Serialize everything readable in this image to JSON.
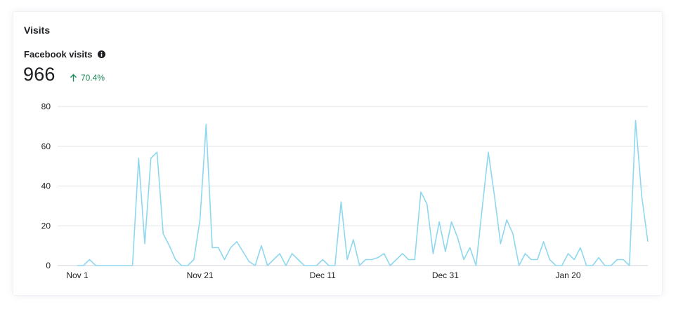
{
  "card": {
    "title": "Visits",
    "metric_label": "Facebook visits",
    "metric_value": "966",
    "delta_text": "70.4%",
    "info_icon": "info-circle-icon",
    "delta_icon": "arrow-up-icon"
  },
  "colors": {
    "line": "#8fd7ee",
    "grid": "#dfe1e6",
    "positive": "#1b8a58"
  },
  "chart_data": {
    "type": "line",
    "title": "",
    "xlabel": "",
    "ylabel": "",
    "ylim": [
      0,
      80
    ],
    "yticks": [
      0,
      20,
      40,
      60,
      80
    ],
    "grid": true,
    "x_tick_labels": [
      {
        "index": 0,
        "label": "Nov 1"
      },
      {
        "index": 20,
        "label": "Nov 21"
      },
      {
        "index": 40,
        "label": "Dec 11"
      },
      {
        "index": 60,
        "label": "Dec 31"
      },
      {
        "index": 80,
        "label": "Jan 20"
      }
    ],
    "series": [
      {
        "values": [
          0,
          0,
          3,
          0,
          0,
          0,
          0,
          0,
          0,
          0,
          54,
          11,
          54,
          57,
          16,
          10,
          3,
          0,
          0,
          3,
          23,
          71,
          9,
          9,
          3,
          9,
          12,
          7,
          2,
          0,
          10,
          0,
          3,
          6,
          0,
          6,
          3,
          0,
          0,
          0,
          3,
          0,
          0,
          32,
          3,
          13,
          0,
          3,
          3,
          4,
          6,
          0,
          3,
          6,
          3,
          3,
          37,
          31,
          6,
          22,
          7,
          22,
          14,
          3,
          9,
          0,
          29,
          57,
          35,
          11,
          23,
          16,
          0,
          6,
          3,
          3,
          12,
          3,
          0,
          0,
          6,
          3,
          9,
          0,
          0,
          4,
          0,
          0,
          3,
          3,
          0,
          73,
          35,
          12
        ]
      }
    ]
  }
}
